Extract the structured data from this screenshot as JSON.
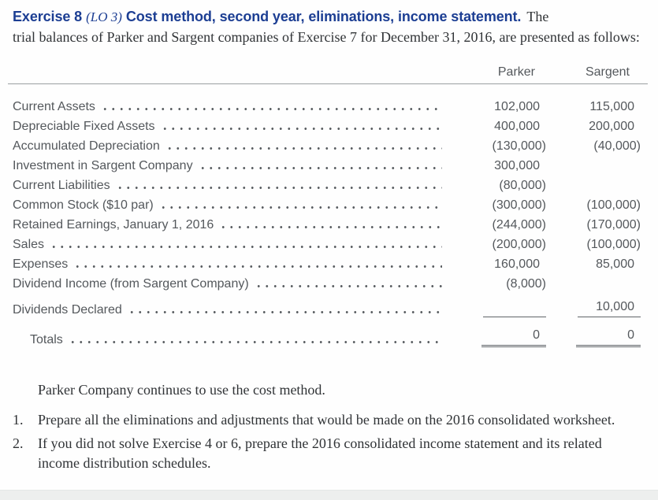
{
  "header": {
    "exercise": "Exercise 8",
    "lo": "(LO 3)",
    "subtitle": "Cost method, second year, eliminations, income statement.",
    "intro_line1_end": "The",
    "intro_rest": "trial balances of Parker and Sargent companies of Exercise 7 for December 31, 2016, are presented as follows:"
  },
  "table": {
    "columns": [
      "Parker",
      "Sargent"
    ],
    "rows": [
      {
        "label": "Current Assets",
        "parker": "102,000",
        "sargent": "115,000"
      },
      {
        "label": "Depreciable Fixed Assets",
        "parker": "400,000",
        "sargent": "200,000"
      },
      {
        "label": "Accumulated Depreciation",
        "parker": "(130,000)",
        "sargent": "(40,000)"
      },
      {
        "label": "Investment in Sargent Company",
        "parker": "300,000",
        "sargent": ""
      },
      {
        "label": "Current Liabilities",
        "parker": "(80,000)",
        "sargent": ""
      },
      {
        "label": "Common Stock ($10 par)",
        "parker": "(300,000)",
        "sargent": "(100,000)"
      },
      {
        "label": "Retained Earnings, January 1, 2016",
        "parker": "(244,000)",
        "sargent": "(170,000)"
      },
      {
        "label": "Sales",
        "parker": "(200,000)",
        "sargent": "(100,000)"
      },
      {
        "label": "Expenses",
        "parker": "160,000",
        "sargent": "85,000"
      },
      {
        "label": "Dividend Income (from Sargent Company)",
        "parker": "(8,000)",
        "sargent": ""
      },
      {
        "label": "Dividends Declared",
        "parker": "",
        "sargent": "10,000",
        "rule": "single"
      },
      {
        "label": "Totals",
        "parker": "0",
        "sargent": "0",
        "rule": "double",
        "indent": true
      }
    ]
  },
  "note": "Parker Company continues to use the cost method.",
  "questions": [
    {
      "number": "1.",
      "text": "Prepare all the eliminations and adjustments that would be made on the 2016 consolidated worksheet."
    },
    {
      "number": "2.",
      "text": "If you did not solve Exercise 4 or 6, prepare the 2016 consolidated income statement and its related income distribution schedules."
    }
  ],
  "colors": {
    "title_blue": "#1c3e93",
    "body_text": "#303336",
    "table_text": "#54585c"
  }
}
